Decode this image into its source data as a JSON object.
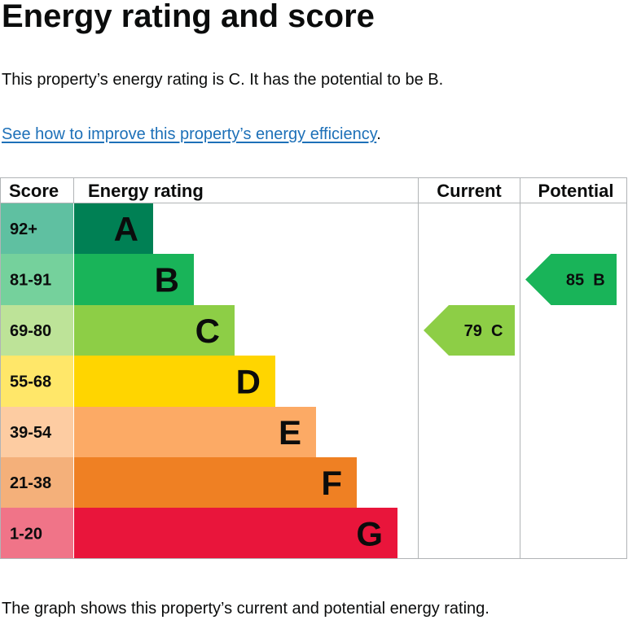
{
  "page": {
    "title": "Energy rating and score",
    "summary": "This property’s energy rating is C. It has the potential to be B.",
    "improve_link": "See how to improve this property’s energy efficiency",
    "improve_suffix": ".",
    "footer": "The graph shows this property’s current and potential energy rating."
  },
  "chart_data": {
    "type": "table",
    "headers": {
      "score": "Score",
      "rating": "Energy rating",
      "current": "Current",
      "potential": "Potential"
    },
    "bands": [
      {
        "score": "92+",
        "letter": "A",
        "color": "#008054",
        "score_color": "#5fc0a1"
      },
      {
        "score": "81-91",
        "letter": "B",
        "color": "#19b459",
        "score_color": "#75d19c"
      },
      {
        "score": "69-80",
        "letter": "C",
        "color": "#8dce46",
        "score_color": "#bde398"
      },
      {
        "score": "55-68",
        "letter": "D",
        "color": "#ffd500",
        "score_color": "#ffe769"
      },
      {
        "score": "39-54",
        "letter": "E",
        "color": "#fcaa65",
        "score_color": "#fdcca2"
      },
      {
        "score": "21-38",
        "letter": "F",
        "color": "#ef8023",
        "score_color": "#f4b07a"
      },
      {
        "score": "1-20",
        "letter": "G",
        "color": "#e9153b",
        "score_color": "#f07488"
      }
    ],
    "current": {
      "value": 79,
      "letter": "C",
      "label": "79  C",
      "band": "C",
      "color": "#8dce46"
    },
    "potential": {
      "value": 85,
      "letter": "B",
      "label": "85  B",
      "band": "B",
      "color": "#19b459"
    }
  }
}
